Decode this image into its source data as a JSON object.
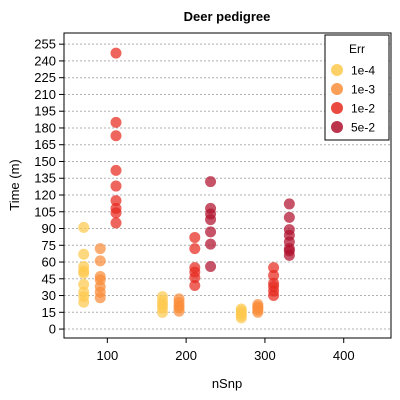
{
  "chart_data": {
    "type": "scatter",
    "title": "Deer pedigree",
    "xlabel": "nSnp",
    "ylabel": "Time (m)",
    "xlim": [
      45,
      460
    ],
    "ylim": [
      -8,
      265
    ],
    "x_ticks": [
      100,
      200,
      300,
      400
    ],
    "y_ticks": [
      0,
      15,
      30,
      45,
      60,
      75,
      90,
      105,
      120,
      135,
      150,
      165,
      180,
      195,
      210,
      225,
      240,
      255
    ],
    "grid": "horizontal dashed at y ticks",
    "legend": {
      "title": "Err",
      "placement": "top-right"
    },
    "series": [
      {
        "name": "1e-4",
        "color": "#fdc94e",
        "points": [
          [
            70,
            91
          ],
          [
            70,
            67
          ],
          [
            70,
            56
          ],
          [
            70,
            52
          ],
          [
            70,
            50
          ],
          [
            70,
            40
          ],
          [
            70,
            33
          ],
          [
            70,
            29
          ],
          [
            70,
            24
          ],
          [
            170,
            29
          ],
          [
            170,
            25
          ],
          [
            170,
            22
          ],
          [
            170,
            19
          ],
          [
            170,
            15
          ],
          [
            270,
            18
          ],
          [
            270,
            16
          ],
          [
            270,
            14
          ],
          [
            270,
            12
          ],
          [
            270,
            10
          ]
        ]
      },
      {
        "name": "1e-3",
        "color": "#f98e3a",
        "points": [
          [
            91,
            72
          ],
          [
            91,
            61
          ],
          [
            91,
            47
          ],
          [
            91,
            44
          ],
          [
            91,
            38
          ],
          [
            91,
            33
          ],
          [
            91,
            28
          ],
          [
            191,
            27
          ],
          [
            191,
            24
          ],
          [
            191,
            21
          ],
          [
            191,
            19
          ],
          [
            191,
            16
          ],
          [
            291,
            22
          ],
          [
            291,
            20
          ],
          [
            291,
            19
          ],
          [
            291,
            17
          ],
          [
            291,
            15
          ]
        ]
      },
      {
        "name": "1e-2",
        "color": "#e62a1f",
        "points": [
          [
            111,
            247
          ],
          [
            111,
            185
          ],
          [
            111,
            173
          ],
          [
            111,
            142
          ],
          [
            111,
            128
          ],
          [
            111,
            115
          ],
          [
            111,
            108
          ],
          [
            111,
            104
          ],
          [
            111,
            95
          ],
          [
            211,
            82
          ],
          [
            211,
            72
          ],
          [
            211,
            55
          ],
          [
            211,
            51
          ],
          [
            211,
            46
          ],
          [
            211,
            39
          ],
          [
            311,
            55
          ],
          [
            311,
            48
          ],
          [
            311,
            41
          ],
          [
            311,
            38
          ],
          [
            311,
            34
          ],
          [
            311,
            30
          ]
        ]
      },
      {
        "name": "5e-2",
        "color": "#b0102d",
        "points": [
          [
            231,
            132
          ],
          [
            231,
            108
          ],
          [
            231,
            103
          ],
          [
            231,
            98
          ],
          [
            231,
            87
          ],
          [
            231,
            76
          ],
          [
            231,
            56
          ],
          [
            331,
            112
          ],
          [
            331,
            100
          ],
          [
            331,
            89
          ],
          [
            331,
            84
          ],
          [
            331,
            78
          ],
          [
            331,
            72
          ],
          [
            331,
            70
          ],
          [
            331,
            66
          ]
        ]
      }
    ]
  }
}
